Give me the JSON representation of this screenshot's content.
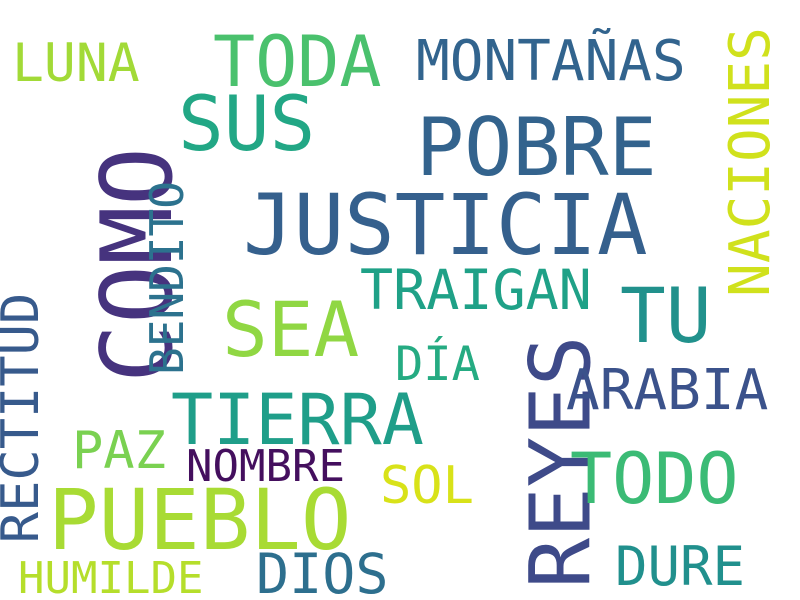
{
  "words": [
    {
      "text": "JUSTICIA",
      "color": "#35608d",
      "orientation": "horizontal"
    },
    {
      "text": "PUEBLO",
      "color": "#a8db34",
      "orientation": "horizontal"
    },
    {
      "text": "COMO",
      "color": "#46337e",
      "orientation": "vertical"
    },
    {
      "text": "POBRE",
      "color": "#33638d",
      "orientation": "horizontal"
    },
    {
      "text": "REYES",
      "color": "#3e4a89",
      "orientation": "vertical"
    },
    {
      "text": "SUS",
      "color": "#22a785",
      "orientation": "horizontal"
    },
    {
      "text": "SEA",
      "color": "#90d743",
      "orientation": "horizontal"
    },
    {
      "text": "TIERRA",
      "color": "#1f9e89",
      "orientation": "horizontal"
    },
    {
      "text": "TU",
      "color": "#21918c",
      "orientation": "horizontal"
    },
    {
      "text": "TODA",
      "color": "#4ac16d",
      "orientation": "horizontal"
    },
    {
      "text": "TODO",
      "color": "#3bbb75",
      "orientation": "horizontal"
    },
    {
      "text": "NACIONES",
      "color": "#d0e11c",
      "orientation": "vertical"
    },
    {
      "text": "RECTITUD",
      "color": "#375a8c",
      "orientation": "vertical"
    },
    {
      "text": "MONTAÑAS",
      "color": "#32648e",
      "orientation": "horizontal"
    },
    {
      "text": "TRAIGAN",
      "color": "#1fa187",
      "orientation": "horizontal"
    },
    {
      "text": "ARABIA",
      "color": "#3b528b",
      "orientation": "horizontal"
    },
    {
      "text": "BENDITO",
      "color": "#2c728e",
      "orientation": "vertical"
    },
    {
      "text": "LUNA",
      "color": "#a2da37",
      "orientation": "horizontal"
    },
    {
      "text": "PAZ",
      "color": "#7ad151",
      "orientation": "horizontal"
    },
    {
      "text": "NOMBRE",
      "color": "#440f5e",
      "orientation": "horizontal"
    },
    {
      "text": "SOL",
      "color": "#d8e219",
      "orientation": "horizontal"
    },
    {
      "text": "DIOS",
      "color": "#2d6f8e",
      "orientation": "horizontal"
    },
    {
      "text": "DURE",
      "color": "#21908d",
      "orientation": "horizontal"
    },
    {
      "text": "DÍA",
      "color": "#25ab82",
      "orientation": "horizontal"
    },
    {
      "text": "HUMILDE",
      "color": "#b5de2b",
      "orientation": "horizontal"
    }
  ]
}
